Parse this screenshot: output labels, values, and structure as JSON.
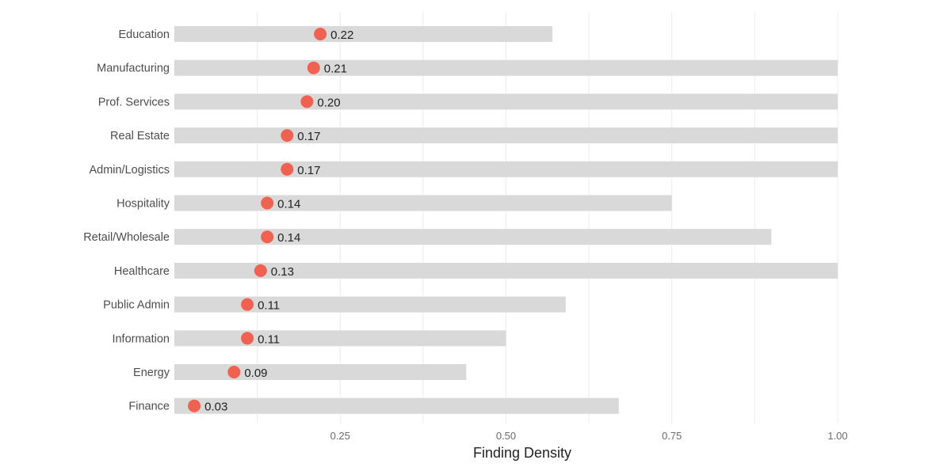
{
  "chart_data": {
    "type": "dot-range",
    "title": "",
    "xlabel": "Finding Density",
    "ylabel": "",
    "xlim": [
      0.0,
      1.0
    ],
    "x_ticks": [
      0.25,
      0.5,
      0.75,
      1.0
    ],
    "x_tick_labels": [
      "0.25",
      "0.50",
      "0.75",
      "1.00"
    ],
    "grid": "vertical",
    "categories": [
      "Education",
      "Manufacturing",
      "Prof. Services",
      "Real Estate",
      "Admin/Logistics",
      "Hospitality",
      "Retail/Wholesale",
      "Healthcare",
      "Public Admin",
      "Information",
      "Energy",
      "Finance"
    ],
    "values": [
      0.22,
      0.21,
      0.2,
      0.17,
      0.17,
      0.14,
      0.14,
      0.13,
      0.11,
      0.11,
      0.09,
      0.03
    ],
    "value_labels": [
      "0.22",
      "0.21",
      "0.20",
      "0.17",
      "0.17",
      "0.14",
      "0.14",
      "0.13",
      "0.11",
      "0.11",
      "0.09",
      "0.03"
    ],
    "range_max": [
      0.57,
      1.0,
      1.0,
      1.0,
      1.0,
      0.75,
      0.9,
      1.0,
      0.59,
      0.5,
      0.44,
      0.67
    ]
  },
  "colors": {
    "dot": "#ef6150",
    "bar": "#d9d9d9",
    "grid": "#ececec",
    "category_text": "#4d4d4d",
    "tick_text": "#6b6b6b",
    "value_text": "#222222",
    "axis_title_text": "#222222"
  }
}
